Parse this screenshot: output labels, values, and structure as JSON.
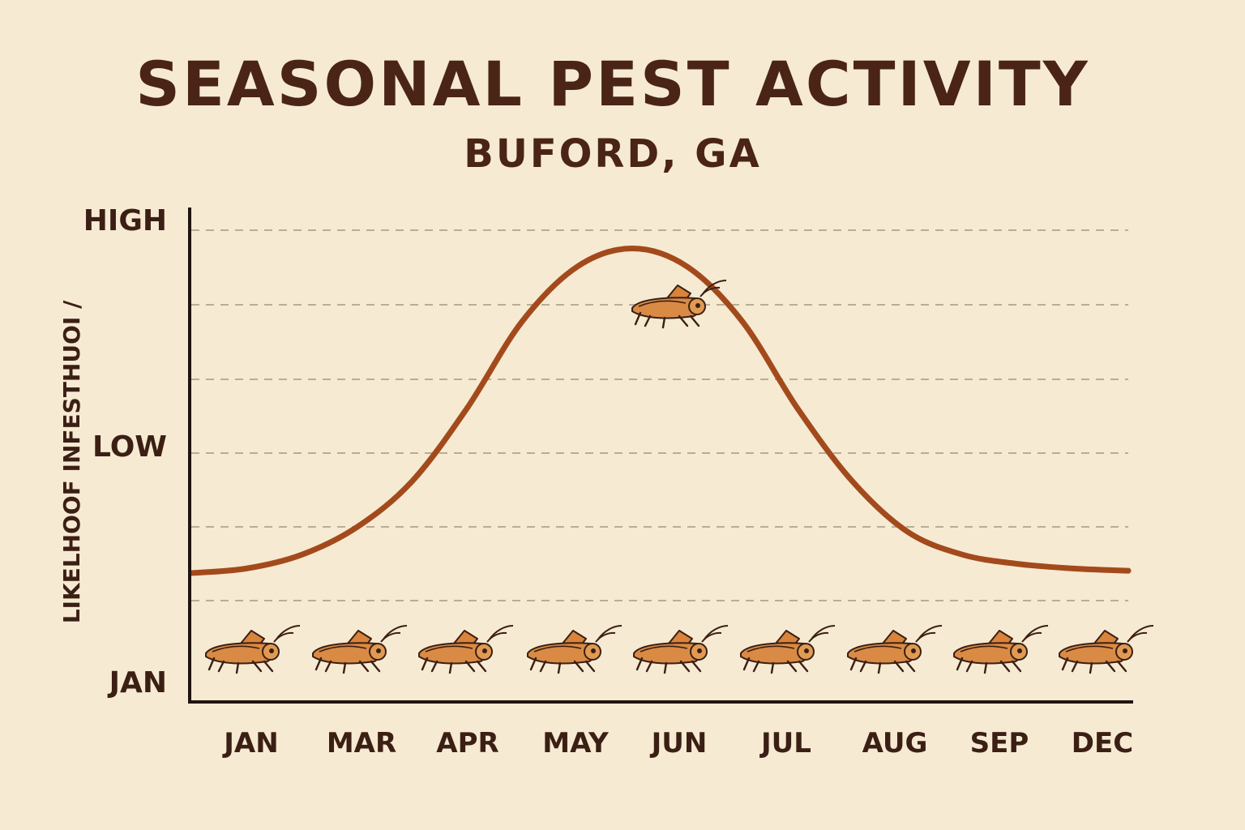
{
  "chart_data": {
    "type": "line",
    "title": "SEASONAL PEST ACTIVITY",
    "subtitle": "BUFORD, GA",
    "ylabel": "LIKELHOOF INFESTHUOI /",
    "xlabel": "",
    "y_tick_labels": [
      "HIGH",
      "LOW",
      "JAN"
    ],
    "categories": [
      "JAN",
      "MAR",
      "APR",
      "MAY",
      "JUN",
      "JUL",
      "AUG",
      "SEP",
      "DEC"
    ],
    "ylim": [
      0,
      10
    ],
    "grid": true,
    "series": [
      {
        "x": [
          0,
          0.5,
          1,
          1.5,
          2,
          2.5,
          3,
          3.5,
          4,
          4.5,
          5,
          5.5,
          6,
          6.5,
          7,
          7.5,
          8,
          8.5
        ],
        "values": [
          2.5,
          2.6,
          2.9,
          3.5,
          4.5,
          6.1,
          8.0,
          9.2,
          9.6,
          9.2,
          8.0,
          6.1,
          4.5,
          3.4,
          2.9,
          2.7,
          2.6,
          2.55
        ],
        "color": "#a34a1c"
      }
    ],
    "icons": "grasshopper-icon"
  }
}
